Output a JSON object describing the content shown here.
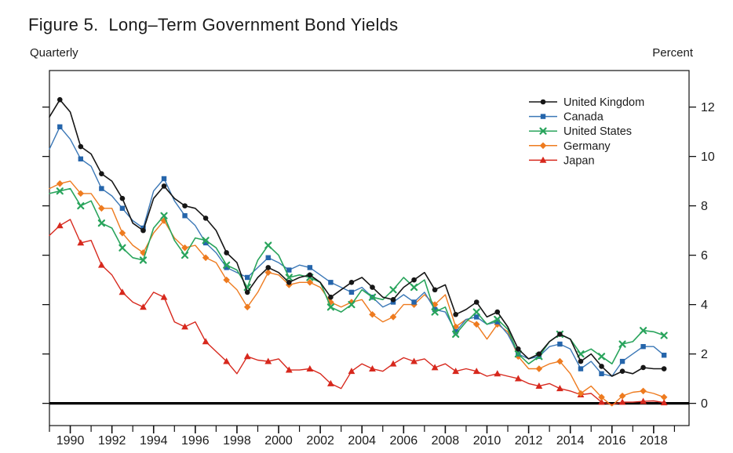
{
  "chart_data": {
    "type": "line",
    "title": "Figure 5.  Long–Term Government Bond Yields",
    "frequency_label": "Quarterly",
    "unit_label": "Percent",
    "x_start": 1989.0,
    "x_step": 0.5,
    "x_end": 2018.5,
    "x_domain": [
      1989.0,
      2019.7
    ],
    "y_domain": [
      -0.9,
      13.48
    ],
    "y_ticks": [
      0,
      2,
      4,
      6,
      8,
      10,
      12
    ],
    "x_minor_tick_years": [
      1989,
      1990,
      1991,
      1992,
      1993,
      1994,
      1995,
      1996,
      1997,
      1998,
      1999,
      2000,
      2001,
      2002,
      2003,
      2004,
      2005,
      2006,
      2007,
      2008,
      2009,
      2010,
      2011,
      2012,
      2013,
      2014,
      2015,
      2016,
      2017,
      2018,
      2019
    ],
    "x_tick_labels": [
      "1990",
      "1992",
      "1994",
      "1996",
      "1998",
      "2000",
      "2002",
      "2004",
      "2006",
      "2008",
      "2010",
      "2012",
      "2014",
      "2016",
      "2018"
    ],
    "grid": false,
    "zero_line": true,
    "legend_position": "upper-right-inside",
    "marker_start_index": 1,
    "marker_every": 2,
    "axis_color": "#111111",
    "series": [
      {
        "name": "United Kingdom",
        "color": "#161616",
        "marker": "circle",
        "line_width": 1.6,
        "values": [
          11.6,
          12.3,
          11.8,
          10.4,
          10.1,
          9.3,
          9.0,
          8.3,
          7.3,
          7.0,
          8.3,
          8.8,
          8.3,
          8.0,
          7.9,
          7.5,
          7.0,
          6.1,
          5.7,
          4.5,
          5.1,
          5.5,
          5.3,
          4.9,
          5.1,
          5.2,
          4.9,
          4.3,
          4.6,
          4.9,
          5.1,
          4.7,
          4.3,
          4.2,
          4.7,
          5.0,
          5.3,
          4.6,
          4.8,
          3.6,
          3.8,
          4.1,
          3.5,
          3.7,
          3.1,
          2.2,
          1.8,
          2.0,
          2.5,
          2.8,
          2.6,
          1.7,
          2.0,
          1.5,
          1.1,
          1.3,
          1.2,
          1.45,
          1.4,
          1.4
        ]
      },
      {
        "name": "Canada",
        "color": "#3a77b6",
        "marker_color": "#2565ab",
        "marker": "square",
        "line_width": 1.4,
        "values": [
          10.3,
          11.2,
          10.7,
          9.9,
          9.6,
          8.7,
          8.4,
          7.9,
          7.4,
          7.1,
          8.6,
          9.1,
          8.2,
          7.6,
          7.2,
          6.5,
          6.1,
          5.5,
          5.3,
          5.1,
          5.5,
          5.9,
          5.7,
          5.4,
          5.6,
          5.5,
          5.2,
          4.9,
          4.7,
          4.5,
          4.7,
          4.3,
          3.9,
          4.1,
          4.4,
          4.1,
          4.5,
          3.8,
          3.7,
          2.9,
          3.4,
          3.5,
          3.2,
          3.3,
          2.8,
          2.0,
          1.8,
          1.9,
          2.3,
          2.4,
          2.2,
          1.4,
          1.7,
          1.2,
          1.1,
          1.7,
          2.0,
          2.3,
          2.3,
          1.95
        ]
      },
      {
        "name": "United States",
        "color": "#29a45c",
        "marker": "x",
        "line_width": 1.6,
        "values": [
          8.5,
          8.6,
          8.7,
          8.0,
          8.2,
          7.3,
          7.1,
          6.3,
          5.9,
          5.8,
          7.1,
          7.6,
          6.6,
          6.0,
          6.7,
          6.6,
          6.3,
          5.6,
          5.4,
          4.7,
          5.8,
          6.4,
          6.0,
          5.1,
          5.2,
          5.1,
          4.9,
          3.9,
          3.7,
          4.0,
          4.6,
          4.3,
          4.2,
          4.6,
          5.1,
          4.7,
          5.0,
          3.7,
          3.9,
          2.8,
          3.3,
          3.7,
          3.2,
          3.4,
          3.0,
          2.0,
          1.6,
          1.9,
          2.5,
          2.8,
          2.6,
          2.0,
          2.2,
          1.9,
          1.6,
          2.4,
          2.5,
          2.95,
          2.9,
          2.75
        ]
      },
      {
        "name": "Germany",
        "color": "#ee7b1f",
        "marker": "diamond",
        "line_width": 1.4,
        "values": [
          8.7,
          8.9,
          9.0,
          8.5,
          8.5,
          7.9,
          7.9,
          6.9,
          6.4,
          6.1,
          6.9,
          7.4,
          6.7,
          6.3,
          6.4,
          5.9,
          5.7,
          5.0,
          4.6,
          3.9,
          4.5,
          5.3,
          5.2,
          4.8,
          4.9,
          4.9,
          4.7,
          4.1,
          3.9,
          4.1,
          4.2,
          3.6,
          3.3,
          3.5,
          4.0,
          4.0,
          4.4,
          4.0,
          4.4,
          3.1,
          3.4,
          3.2,
          2.6,
          3.2,
          2.9,
          1.9,
          1.4,
          1.4,
          1.6,
          1.7,
          1.2,
          0.4,
          0.7,
          0.25,
          -0.1,
          0.3,
          0.45,
          0.5,
          0.4,
          0.25
        ]
      },
      {
        "name": "Japan",
        "color": "#d7281d",
        "marker": "triangle",
        "line_width": 1.4,
        "values": [
          6.8,
          7.2,
          7.45,
          6.5,
          6.6,
          5.6,
          5.2,
          4.5,
          4.1,
          3.9,
          4.5,
          4.3,
          3.3,
          3.1,
          3.3,
          2.5,
          2.1,
          1.7,
          1.2,
          1.9,
          1.75,
          1.7,
          1.8,
          1.35,
          1.35,
          1.4,
          1.2,
          0.8,
          0.6,
          1.3,
          1.6,
          1.4,
          1.3,
          1.6,
          1.85,
          1.7,
          1.8,
          1.45,
          1.6,
          1.3,
          1.4,
          1.3,
          1.1,
          1.2,
          1.1,
          1.0,
          0.8,
          0.7,
          0.8,
          0.6,
          0.5,
          0.35,
          0.4,
          0.05,
          -0.05,
          0.05,
          0.05,
          0.08,
          0.1,
          0.03
        ]
      }
    ]
  }
}
